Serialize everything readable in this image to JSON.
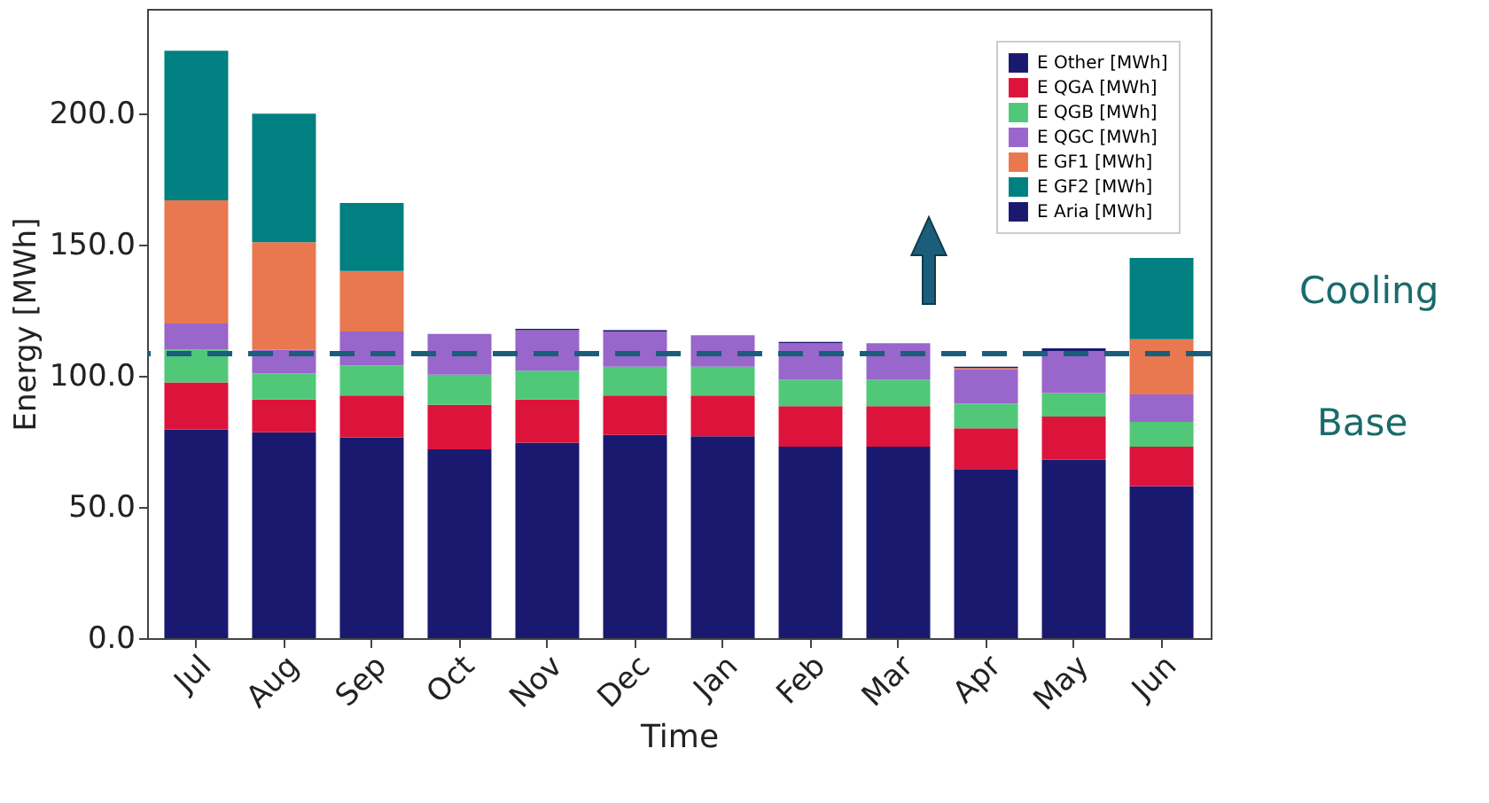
{
  "chart_data": {
    "type": "bar",
    "stacked": true,
    "xlabel": "Time",
    "ylabel": "Energy [MWh]",
    "categories": [
      "Jul",
      "Aug",
      "Sep",
      "Oct",
      "Nov",
      "Dec",
      "Jan",
      "Feb",
      "Mar",
      "Apr",
      "May",
      "Jun"
    ],
    "series": [
      {
        "name": "E Other [MWh]",
        "color": "#191970",
        "values": [
          79.5,
          78.5,
          76.5,
          72,
          74.5,
          77.5,
          77,
          73,
          73,
          64.5,
          68,
          58
        ]
      },
      {
        "name": "E QGA [MWh]",
        "color": "#dc143c",
        "values": [
          18,
          12.5,
          16,
          17,
          16.5,
          15,
          15.5,
          15.5,
          15.5,
          15.5,
          16.5,
          15
        ]
      },
      {
        "name": "E QGB [MWh]",
        "color": "#50c878",
        "values": [
          12.5,
          10,
          11.5,
          11.5,
          11,
          11,
          11,
          10,
          10,
          9.5,
          9,
          9.5
        ]
      },
      {
        "name": "E QGC [MWh]",
        "color": "#9966cc",
        "values": [
          10,
          9,
          13,
          15.5,
          15.5,
          13.5,
          12,
          14,
          14,
          13,
          16,
          10.5
        ]
      },
      {
        "name": "E GF1 [MWh]",
        "color": "#e9774f",
        "values": [
          47,
          41,
          23,
          0,
          0,
          0,
          0,
          0,
          0,
          0.5,
          0,
          21
        ]
      },
      {
        "name": "E GF2 [MWh]",
        "color": "#008080",
        "values": [
          57,
          49,
          26,
          0,
          0,
          0,
          0,
          0,
          0,
          0,
          0,
          31
        ]
      },
      {
        "name": "E Aria [MWh]",
        "color": "#191970",
        "values": [
          0,
          0,
          0,
          0,
          0.5,
          0.5,
          0,
          0.5,
          0,
          0.5,
          1,
          0
        ]
      }
    ],
    "ylim": [
      0,
      240
    ],
    "yticks": [
      {
        "value": 0,
        "label": "0.0"
      },
      {
        "value": 50,
        "label": "50.0"
      },
      {
        "value": 100,
        "label": "100.0"
      },
      {
        "value": 150,
        "label": "150.0"
      },
      {
        "value": 200,
        "label": "200.0"
      }
    ],
    "ref_lines": [
      {
        "axis": "y",
        "value": 108.5,
        "label": null,
        "color": "#1b5e7b",
        "line_style": "dashed"
      }
    ],
    "annotations": [
      "Cooling",
      "Base"
    ],
    "legend": "top right",
    "grid": false
  }
}
